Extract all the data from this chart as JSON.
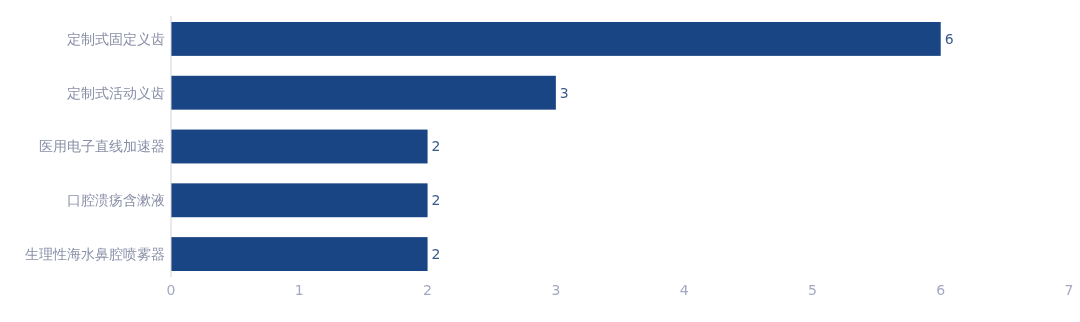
{
  "chart_data": {
    "type": "bar",
    "orientation": "horizontal",
    "categories": [
      "定制式固定义齿",
      "定制式活动义齿",
      "医用电子直线加速器",
      "口腔溃疡含漱液",
      "生理性海水鼻腔喷雾器"
    ],
    "values": [
      6,
      3,
      2,
      2,
      2
    ],
    "color": "#1a4585",
    "xlim": [
      0,
      7
    ],
    "xticks": [
      0,
      1,
      2,
      3,
      4,
      5,
      6,
      7
    ],
    "data_labels": true
  }
}
